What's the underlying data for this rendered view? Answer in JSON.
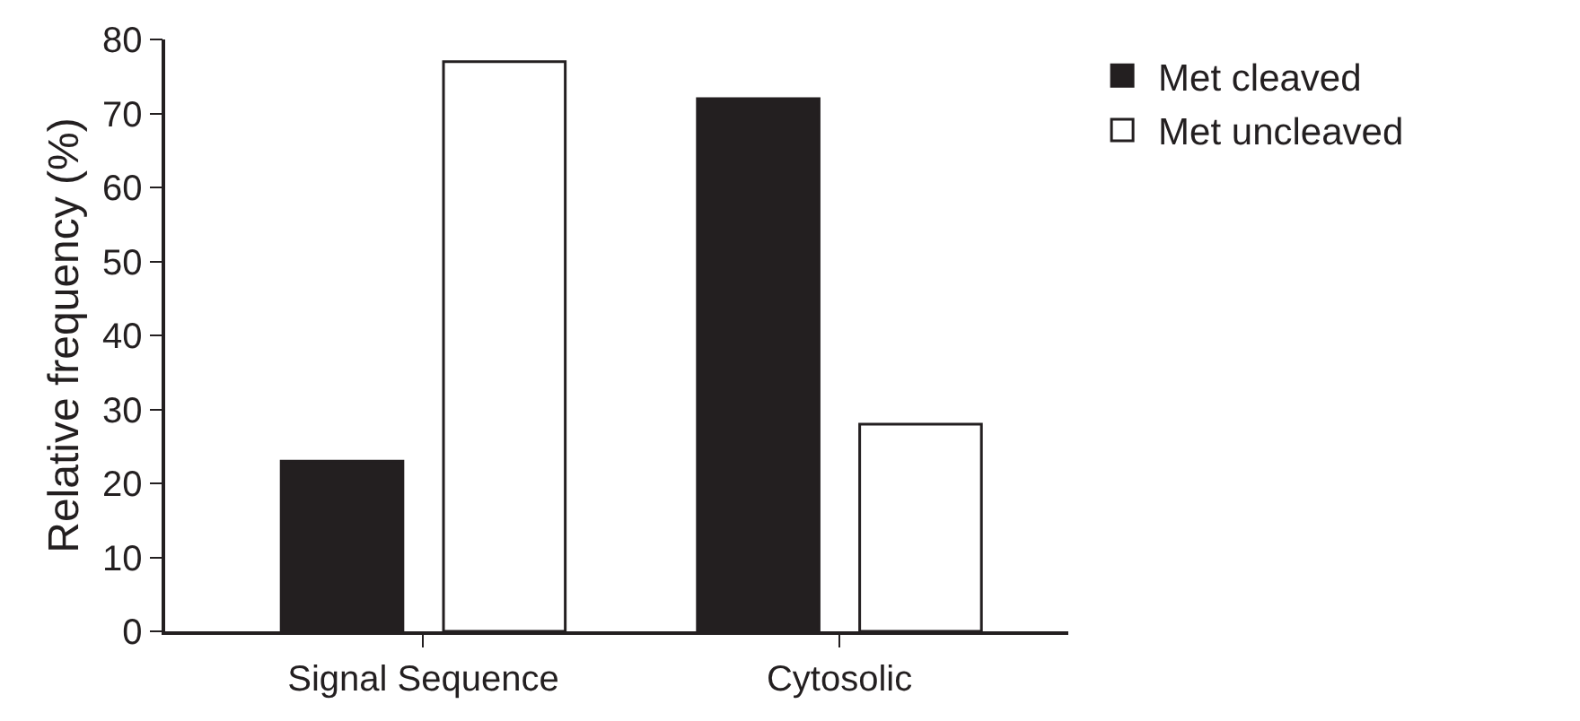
{
  "chart_data": {
    "type": "bar",
    "ylabel": "Relative frequency (%)",
    "categories": [
      "Signal Sequence",
      "Cytosolic"
    ],
    "series": [
      {
        "name": "Met cleaved",
        "color": "#231f20",
        "values": [
          23,
          72
        ]
      },
      {
        "name": "Met uncleaved",
        "color": "#ffffff",
        "values": [
          77,
          28
        ]
      }
    ],
    "ylim": [
      0,
      80
    ],
    "yticks": [
      0,
      10,
      20,
      30,
      40,
      50,
      60,
      70,
      80
    ],
    "legend": "top right"
  }
}
